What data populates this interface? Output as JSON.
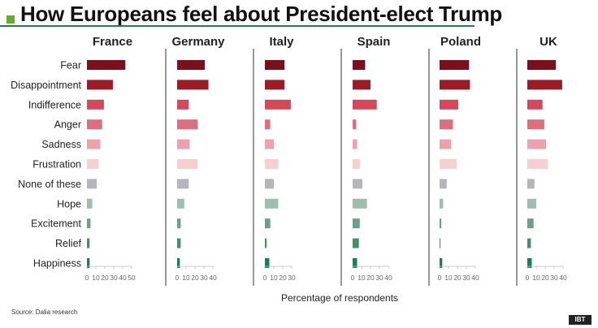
{
  "header": {
    "title": "How Europeans feel about President-elect Trump",
    "accent_color": "#6aaa2e",
    "rule_color": "#2e7a4a"
  },
  "footer": {
    "source": "Source: Dalia research",
    "logo_text": "IBT"
  },
  "chart_data": {
    "type": "bar",
    "orientation": "horizontal",
    "title": "How Europeans feel about President-elect Trump",
    "xlabel": "Percentage of respondents",
    "categories": [
      "Fear",
      "Disappointment",
      "Indifference",
      "Anger",
      "Sadness",
      "Frustration",
      "None of these",
      "Hope",
      "Excitement",
      "Relief",
      "Happiness"
    ],
    "category_colors": [
      "#7a0f1d",
      "#9b1b26",
      "#d24a5a",
      "#dd6e7e",
      "#eba2ad",
      "#f6cfd5",
      "#b5b5bb",
      "#9ebfae",
      "#6e9e8a",
      "#4a8c6e",
      "#1d7a5a"
    ],
    "panels": [
      {
        "name": "France",
        "xlim": [
          0,
          50
        ],
        "ticks": [
          0,
          10,
          20,
          30,
          40,
          50
        ],
        "values": [
          43,
          29,
          19,
          17,
          15,
          13,
          11,
          6,
          4,
          3,
          3
        ]
      },
      {
        "name": "Germany",
        "xlim": [
          0,
          40
        ],
        "ticks": [
          0,
          10,
          20,
          30,
          40
        ],
        "values": [
          31,
          35,
          13,
          23,
          14,
          23,
          13,
          8,
          4,
          4,
          3
        ]
      },
      {
        "name": "Italy",
        "xlim": [
          0,
          30
        ],
        "ticks": [
          0,
          10,
          20,
          30
        ],
        "values": [
          22,
          22,
          29,
          6,
          10,
          15,
          10,
          15,
          6,
          2,
          5
        ]
      },
      {
        "name": "Spain",
        "xlim": [
          0,
          40
        ],
        "ticks": [
          0,
          10,
          20,
          30,
          40
        ],
        "values": [
          14,
          20,
          27,
          4,
          5,
          8,
          11,
          16,
          8,
          7,
          5
        ]
      },
      {
        "name": "Poland",
        "xlim": [
          0,
          40
        ],
        "ticks": [
          0,
          10,
          20,
          30,
          40
        ],
        "values": [
          33,
          34,
          21,
          15,
          13,
          19,
          8,
          4,
          2,
          1,
          3
        ]
      },
      {
        "name": "UK",
        "xlim": [
          0,
          40
        ],
        "ticks": [
          0,
          10,
          20,
          30,
          40
        ],
        "values": [
          32,
          39,
          17,
          19,
          21,
          23,
          8,
          10,
          7,
          4,
          5
        ]
      }
    ],
    "grid": false,
    "legend": "none"
  }
}
